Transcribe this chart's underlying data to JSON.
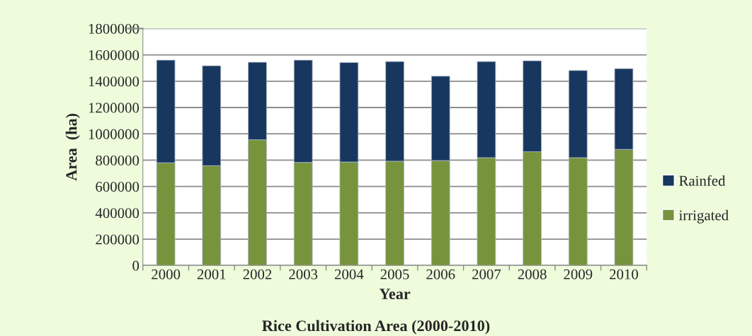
{
  "chart_data": {
    "type": "bar",
    "title": "Rice Cultivation Area (2000-2010)",
    "xlabel": "Year",
    "ylabel": "Area  (ha)",
    "categories": [
      "2000",
      "2001",
      "2002",
      "2003",
      "2004",
      "2005",
      "2006",
      "2007",
      "2008",
      "2009",
      "2010"
    ],
    "stacked": true,
    "series": [
      {
        "name": "irrigated",
        "color": "#77933c",
        "values": [
          780000,
          758000,
          955000,
          783000,
          786000,
          792000,
          797000,
          819000,
          864000,
          819000,
          882000
        ]
      },
      {
        "name": "Rainfed",
        "color": "#17375e",
        "values": [
          780000,
          759000,
          589000,
          777000,
          756000,
          757000,
          641000,
          730000,
          691000,
          662000,
          613000
        ]
      }
    ],
    "ylim": [
      0,
      1800000
    ],
    "yticks": [
      0,
      200000,
      400000,
      600000,
      800000,
      1000000,
      1200000,
      1400000,
      1600000,
      1800000
    ],
    "grid": "y",
    "legend": "right"
  }
}
